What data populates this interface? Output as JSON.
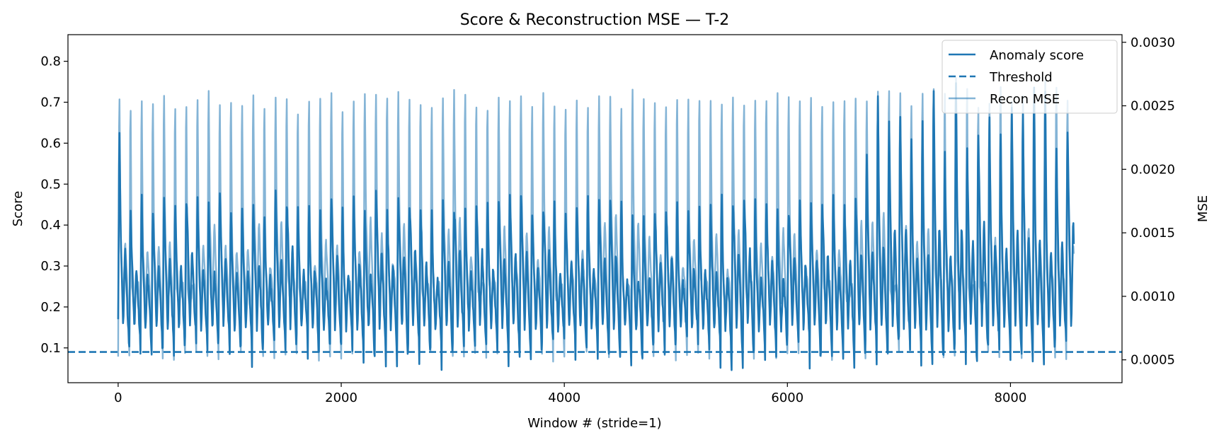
{
  "chart_data": {
    "type": "line",
    "title": "Score & Reconstruction MSE — T-2",
    "xlabel": "Window # (stride=1)",
    "ylabel": "Score",
    "y2label": "MSE",
    "xlim": [
      -450,
      9000
    ],
    "ylim": [
      0.015,
      0.865
    ],
    "y2lim": [
      0.00032,
      0.00306
    ],
    "xticks": [
      0,
      2000,
      4000,
      6000,
      8000
    ],
    "xtick_labels": [
      "0",
      "2000",
      "4000",
      "6000",
      "8000"
    ],
    "yticks": [
      0.1,
      0.2,
      0.3,
      0.4,
      0.5,
      0.6,
      0.7,
      0.8
    ],
    "ytick_labels": [
      "0.1",
      "0.2",
      "0.3",
      "0.4",
      "0.5",
      "0.6",
      "0.7",
      "0.8"
    ],
    "y2ticks": [
      0.0005,
      0.001,
      0.0015,
      0.002,
      0.0025,
      0.003
    ],
    "y2tick_labels": [
      "0.0005",
      "0.0010",
      "0.0015",
      "0.0020",
      "0.0025",
      "0.0030"
    ],
    "grid": false,
    "legend_position": "top-right",
    "colors": {
      "score": "#1f77b4",
      "mse": "#1f77b4"
    },
    "series": [
      {
        "name": "Anomaly score",
        "axis": "left",
        "style": "solid",
        "x_range": [
          0,
          8570
        ],
        "period": 100,
        "pattern": "periodic spikes: peaks ~0.45-0.50 with larger peaks ~0.67-0.82 after x≈6600, troughs ~0.05-0.13"
      },
      {
        "name": "Threshold",
        "axis": "left",
        "style": "dashed",
        "value": 0.09
      },
      {
        "name": "Recon MSE",
        "axis": "right",
        "style": "solid",
        "alpha": 0.55,
        "x_range": [
          0,
          8570
        ],
        "period": 100,
        "pattern": "periodic spikes: peaks ~0.00275-0.00280 (to ~0.0030 after x≈6800), troughs ~0.00050-0.00055"
      }
    ]
  }
}
